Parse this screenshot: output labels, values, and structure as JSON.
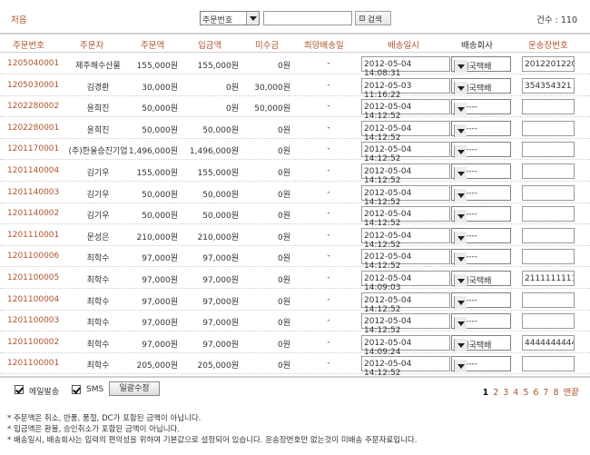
{
  "topbar": {
    "first_link": "처음",
    "search_field": "주문번호",
    "search_value": "",
    "search_button": "검색",
    "count": "건수 : 110"
  },
  "columns": {
    "order_no": "주문번호",
    "orderer": "주문자",
    "order_amount": "주문액",
    "deposit": "입금액",
    "unpaid": "미수금",
    "desired_date": "희망배송일",
    "ship_datetime": "배송일시",
    "courier": "배송회사",
    "tracking": "운송장번호"
  },
  "rows": [
    {
      "order_no": "1205040001",
      "orderer": "제주해수산물",
      "order_amount": "155,000원",
      "deposit": "155,000원",
      "unpaid": "0원",
      "desired_date": "-",
      "ship_datetime": "2012-05-04 14:08:31",
      "courier": "우체국택배",
      "tracking": "2012201220"
    },
    {
      "order_no": "1205030001",
      "orderer": "김경환",
      "order_amount": "30,000원",
      "deposit": "0원",
      "unpaid": "30,000원",
      "desired_date": "-",
      "ship_datetime": "2012-05-03 11:16:22",
      "courier": "우체국택배",
      "tracking": "354354321"
    },
    {
      "order_no": "1202280002",
      "orderer": "윤희진",
      "order_amount": "50,000원",
      "deposit": "0원",
      "unpaid": "50,000원",
      "desired_date": "-",
      "ship_datetime": "2012-05-04 14:12:52",
      "courier": "--------",
      "tracking": ""
    },
    {
      "order_no": "1202280001",
      "orderer": "윤희진",
      "order_amount": "50,000원",
      "deposit": "50,000원",
      "unpaid": "0원",
      "desired_date": "-",
      "ship_datetime": "2012-05-04 14:12:52",
      "courier": "--------",
      "tracking": ""
    },
    {
      "order_no": "1201170001",
      "orderer": "(주)한울승진기업",
      "order_amount": "1,496,000원",
      "deposit": "1,496,000원",
      "unpaid": "0원",
      "desired_date": "-",
      "ship_datetime": "2012-05-04 14:12:52",
      "courier": "--------",
      "tracking": ""
    },
    {
      "order_no": "1201140004",
      "orderer": "김기우",
      "order_amount": "155,000원",
      "deposit": "155,000원",
      "unpaid": "0원",
      "desired_date": "-",
      "ship_datetime": "2012-05-04 14:12:52",
      "courier": "--------",
      "tracking": ""
    },
    {
      "order_no": "1201140003",
      "orderer": "김기우",
      "order_amount": "50,000원",
      "deposit": "50,000원",
      "unpaid": "0원",
      "desired_date": "-",
      "ship_datetime": "2012-05-04 14:12:52",
      "courier": "--------",
      "tracking": ""
    },
    {
      "order_no": "1201140002",
      "orderer": "김기우",
      "order_amount": "50,000원",
      "deposit": "50,000원",
      "unpaid": "0원",
      "desired_date": "-",
      "ship_datetime": "2012-05-04 14:12:52",
      "courier": "--------",
      "tracking": ""
    },
    {
      "order_no": "1201110001",
      "orderer": "문성은",
      "order_amount": "210,000원",
      "deposit": "210,000원",
      "unpaid": "0원",
      "desired_date": "-",
      "ship_datetime": "2012-05-04 14:12:52",
      "courier": "--------",
      "tracking": ""
    },
    {
      "order_no": "1201100006",
      "orderer": "최학수",
      "order_amount": "97,000원",
      "deposit": "97,000원",
      "unpaid": "0원",
      "desired_date": "-",
      "ship_datetime": "2012-05-04 14:12:52",
      "courier": "--------",
      "tracking": ""
    },
    {
      "order_no": "1201100005",
      "orderer": "최학수",
      "order_amount": "97,000원",
      "deposit": "97,000원",
      "unpaid": "0원",
      "desired_date": "-",
      "ship_datetime": "2012-05-04 14:09:03",
      "courier": "우체국택배",
      "tracking": "2111111111"
    },
    {
      "order_no": "1201100004",
      "orderer": "최학수",
      "order_amount": "97,000원",
      "deposit": "97,000원",
      "unpaid": "0원",
      "desired_date": "-",
      "ship_datetime": "2012-05-04 14:12:52",
      "courier": "--------",
      "tracking": ""
    },
    {
      "order_no": "1201100003",
      "orderer": "최학수",
      "order_amount": "97,000원",
      "deposit": "97,000원",
      "unpaid": "0원",
      "desired_date": "-",
      "ship_datetime": "2012-05-04 14:12:52",
      "courier": "--------",
      "tracking": ""
    },
    {
      "order_no": "1201100002",
      "orderer": "최학수",
      "order_amount": "97,000원",
      "deposit": "97,000원",
      "unpaid": "0원",
      "desired_date": "-",
      "ship_datetime": "2012-05-04 14:09:24",
      "courier": "우체국택배",
      "tracking": "4444444444"
    },
    {
      "order_no": "1201100001",
      "orderer": "최학수",
      "order_amount": "205,000원",
      "deposit": "205,000원",
      "unpaid": "0원",
      "desired_date": "-",
      "ship_datetime": "2012-05-04 14:12:52",
      "courier": "--------",
      "tracking": ""
    }
  ],
  "footer": {
    "email_label": "메일발송",
    "sms_label": "SMS",
    "bulk_button": "일괄수정",
    "pages": [
      "1",
      "2",
      "3",
      "4",
      "5",
      "6",
      "7",
      "8"
    ],
    "current_page": "1",
    "last_label": "맨끝"
  },
  "notes": [
    "* 주문액은 취소, 반품, 품절, DC가 포함된 금액이 아닙니다.",
    "* 입금액은 환불, 승인취소가 포함된 금액이 아닙니다.",
    "* 배송일시, 배송회사는 입력의 편의성을 위하여 기본값으로 설정되어 있습니다. 운송장번호만 없는것이 미배송 주문자료입니다."
  ],
  "colors": {
    "accent": "#b0532a",
    "border": "#d0d0d0"
  }
}
